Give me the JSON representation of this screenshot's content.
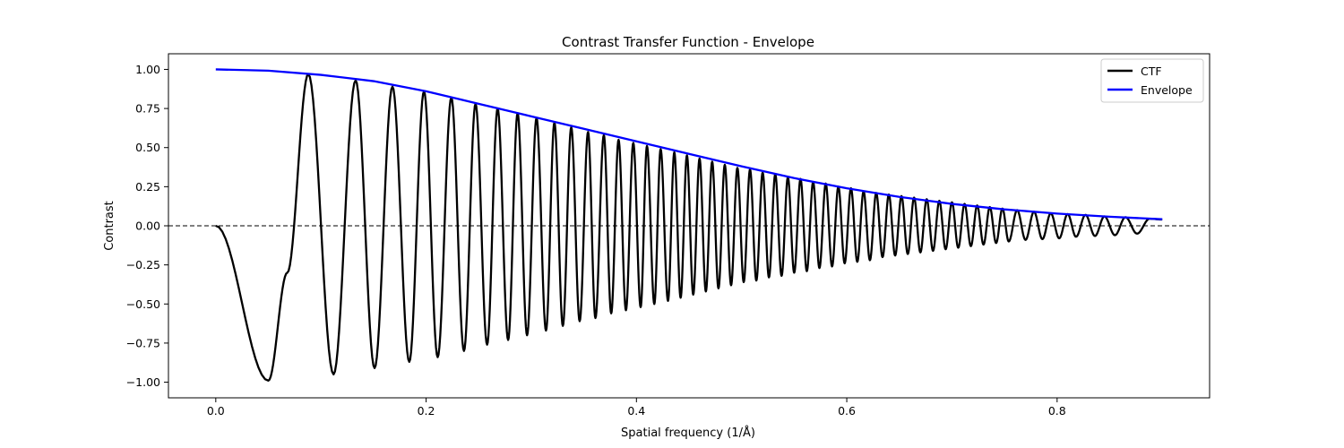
{
  "chart_data": {
    "type": "line",
    "title": "Contrast Transfer Function - Envelope",
    "xlabel": "Spatial frequency (1/Å)",
    "ylabel": "Contrast",
    "xlim": [
      -0.045,
      0.945
    ],
    "ylim": [
      -1.1,
      1.1
    ],
    "x_ticks": [
      0.0,
      0.2,
      0.4,
      0.6,
      0.8
    ],
    "x_tick_labels": [
      "0.0",
      "0.2",
      "0.4",
      "0.6",
      "0.8"
    ],
    "y_ticks": [
      -1.0,
      -0.75,
      -0.5,
      -0.25,
      0.0,
      0.25,
      0.5,
      0.75,
      1.0
    ],
    "y_tick_labels": [
      "−1.00",
      "−0.75",
      "−0.50",
      "−0.25",
      "0.00",
      "0.25",
      "0.50",
      "0.75",
      "1.00"
    ],
    "grid": false,
    "legend_position": "top-right",
    "reference_line": {
      "y": 0.0,
      "style": "dashed",
      "color": "#000000"
    },
    "series": [
      {
        "name": "CTF",
        "color": "#000000",
        "x_range": [
          0.0,
          0.9
        ],
        "points": [
          [
            0.0,
            0.0
          ],
          [
            0.05,
            -0.99
          ],
          [
            0.068,
            -0.3
          ],
          [
            0.088,
            0.97
          ],
          [
            0.112,
            -0.95
          ],
          [
            0.133,
            0.93
          ],
          [
            0.151,
            -0.91
          ],
          [
            0.168,
            0.89
          ],
          [
            0.184,
            -0.87
          ],
          [
            0.198,
            0.86
          ],
          [
            0.211,
            -0.84
          ],
          [
            0.224,
            0.82
          ],
          [
            0.236,
            -0.8
          ],
          [
            0.247,
            0.78
          ],
          [
            0.258,
            -0.76
          ],
          [
            0.268,
            0.75
          ],
          [
            0.278,
            -0.73
          ],
          [
            0.287,
            0.72
          ],
          [
            0.296,
            -0.7
          ],
          [
            0.305,
            0.69
          ],
          [
            0.314,
            -0.67
          ],
          [
            0.322,
            0.66
          ],
          [
            0.33,
            -0.64
          ],
          [
            0.338,
            0.63
          ],
          [
            0.346,
            -0.61
          ],
          [
            0.354,
            0.6
          ],
          [
            0.361,
            -0.59
          ],
          [
            0.369,
            0.58
          ],
          [
            0.376,
            -0.56
          ],
          [
            0.383,
            0.55
          ],
          [
            0.39,
            -0.54
          ],
          [
            0.397,
            0.53
          ],
          [
            0.404,
            -0.52
          ],
          [
            0.41,
            0.51
          ],
          [
            0.417,
            -0.5
          ],
          [
            0.423,
            0.49
          ],
          [
            0.43,
            -0.48
          ],
          [
            0.436,
            0.47
          ],
          [
            0.442,
            -0.46
          ],
          [
            0.448,
            0.45
          ],
          [
            0.454,
            -0.44
          ],
          [
            0.46,
            0.43
          ],
          [
            0.466,
            -0.42
          ],
          [
            0.472,
            0.41
          ],
          [
            0.478,
            -0.4
          ],
          [
            0.484,
            0.39
          ],
          [
            0.49,
            -0.38
          ],
          [
            0.496,
            0.37
          ],
          [
            0.502,
            -0.36
          ],
          [
            0.508,
            0.36
          ],
          [
            0.514,
            -0.35
          ],
          [
            0.52,
            0.34
          ],
          [
            0.526,
            -0.33
          ],
          [
            0.532,
            0.33
          ],
          [
            0.538,
            -0.32
          ],
          [
            0.544,
            0.31
          ],
          [
            0.55,
            -0.3
          ],
          [
            0.556,
            0.3
          ],
          [
            0.562,
            -0.29
          ],
          [
            0.568,
            0.28
          ],
          [
            0.574,
            -0.27
          ],
          [
            0.58,
            0.27
          ],
          [
            0.586,
            -0.26
          ],
          [
            0.592,
            0.25
          ],
          [
            0.598,
            -0.24
          ],
          [
            0.604,
            0.24
          ],
          [
            0.61,
            -0.23
          ],
          [
            0.616,
            0.22
          ],
          [
            0.622,
            -0.22
          ],
          [
            0.628,
            0.21
          ],
          [
            0.634,
            -0.2
          ],
          [
            0.64,
            0.2
          ],
          [
            0.646,
            -0.19
          ],
          [
            0.652,
            0.19
          ],
          [
            0.658,
            -0.18
          ],
          [
            0.664,
            0.18
          ],
          [
            0.67,
            -0.17
          ],
          [
            0.676,
            0.17
          ],
          [
            0.682,
            -0.16
          ],
          [
            0.688,
            0.16
          ],
          [
            0.694,
            -0.15
          ],
          [
            0.7,
            0.15
          ],
          [
            0.706,
            -0.14
          ],
          [
            0.712,
            0.14
          ],
          [
            0.718,
            -0.13
          ],
          [
            0.724,
            0.13
          ],
          [
            0.73,
            -0.12
          ],
          [
            0.736,
            0.12
          ],
          [
            0.742,
            -0.11
          ],
          [
            0.748,
            0.11
          ],
          [
            0.754,
            -0.1
          ],
          [
            0.762,
            0.1
          ],
          [
            0.77,
            -0.09
          ],
          [
            0.778,
            0.09
          ],
          [
            0.786,
            -0.085
          ],
          [
            0.794,
            0.08
          ],
          [
            0.802,
            -0.08
          ],
          [
            0.81,
            0.075
          ],
          [
            0.818,
            -0.07
          ],
          [
            0.827,
            0.07
          ],
          [
            0.836,
            -0.065
          ],
          [
            0.845,
            0.06
          ],
          [
            0.855,
            -0.06
          ],
          [
            0.865,
            0.055
          ],
          [
            0.876,
            -0.05
          ],
          [
            0.888,
            0.045
          ],
          [
            0.9,
            0.04
          ]
        ]
      },
      {
        "name": "Envelope",
        "color": "#0000ff",
        "points": [
          [
            0.0,
            1.0
          ],
          [
            0.05,
            0.992
          ],
          [
            0.1,
            0.965
          ],
          [
            0.15,
            0.925
          ],
          [
            0.2,
            0.86
          ],
          [
            0.25,
            0.78
          ],
          [
            0.3,
            0.7
          ],
          [
            0.35,
            0.62
          ],
          [
            0.4,
            0.54
          ],
          [
            0.45,
            0.46
          ],
          [
            0.5,
            0.38
          ],
          [
            0.55,
            0.305
          ],
          [
            0.6,
            0.24
          ],
          [
            0.65,
            0.185
          ],
          [
            0.7,
            0.14
          ],
          [
            0.75,
            0.105
          ],
          [
            0.8,
            0.078
          ],
          [
            0.85,
            0.058
          ],
          [
            0.9,
            0.042
          ]
        ]
      }
    ]
  }
}
